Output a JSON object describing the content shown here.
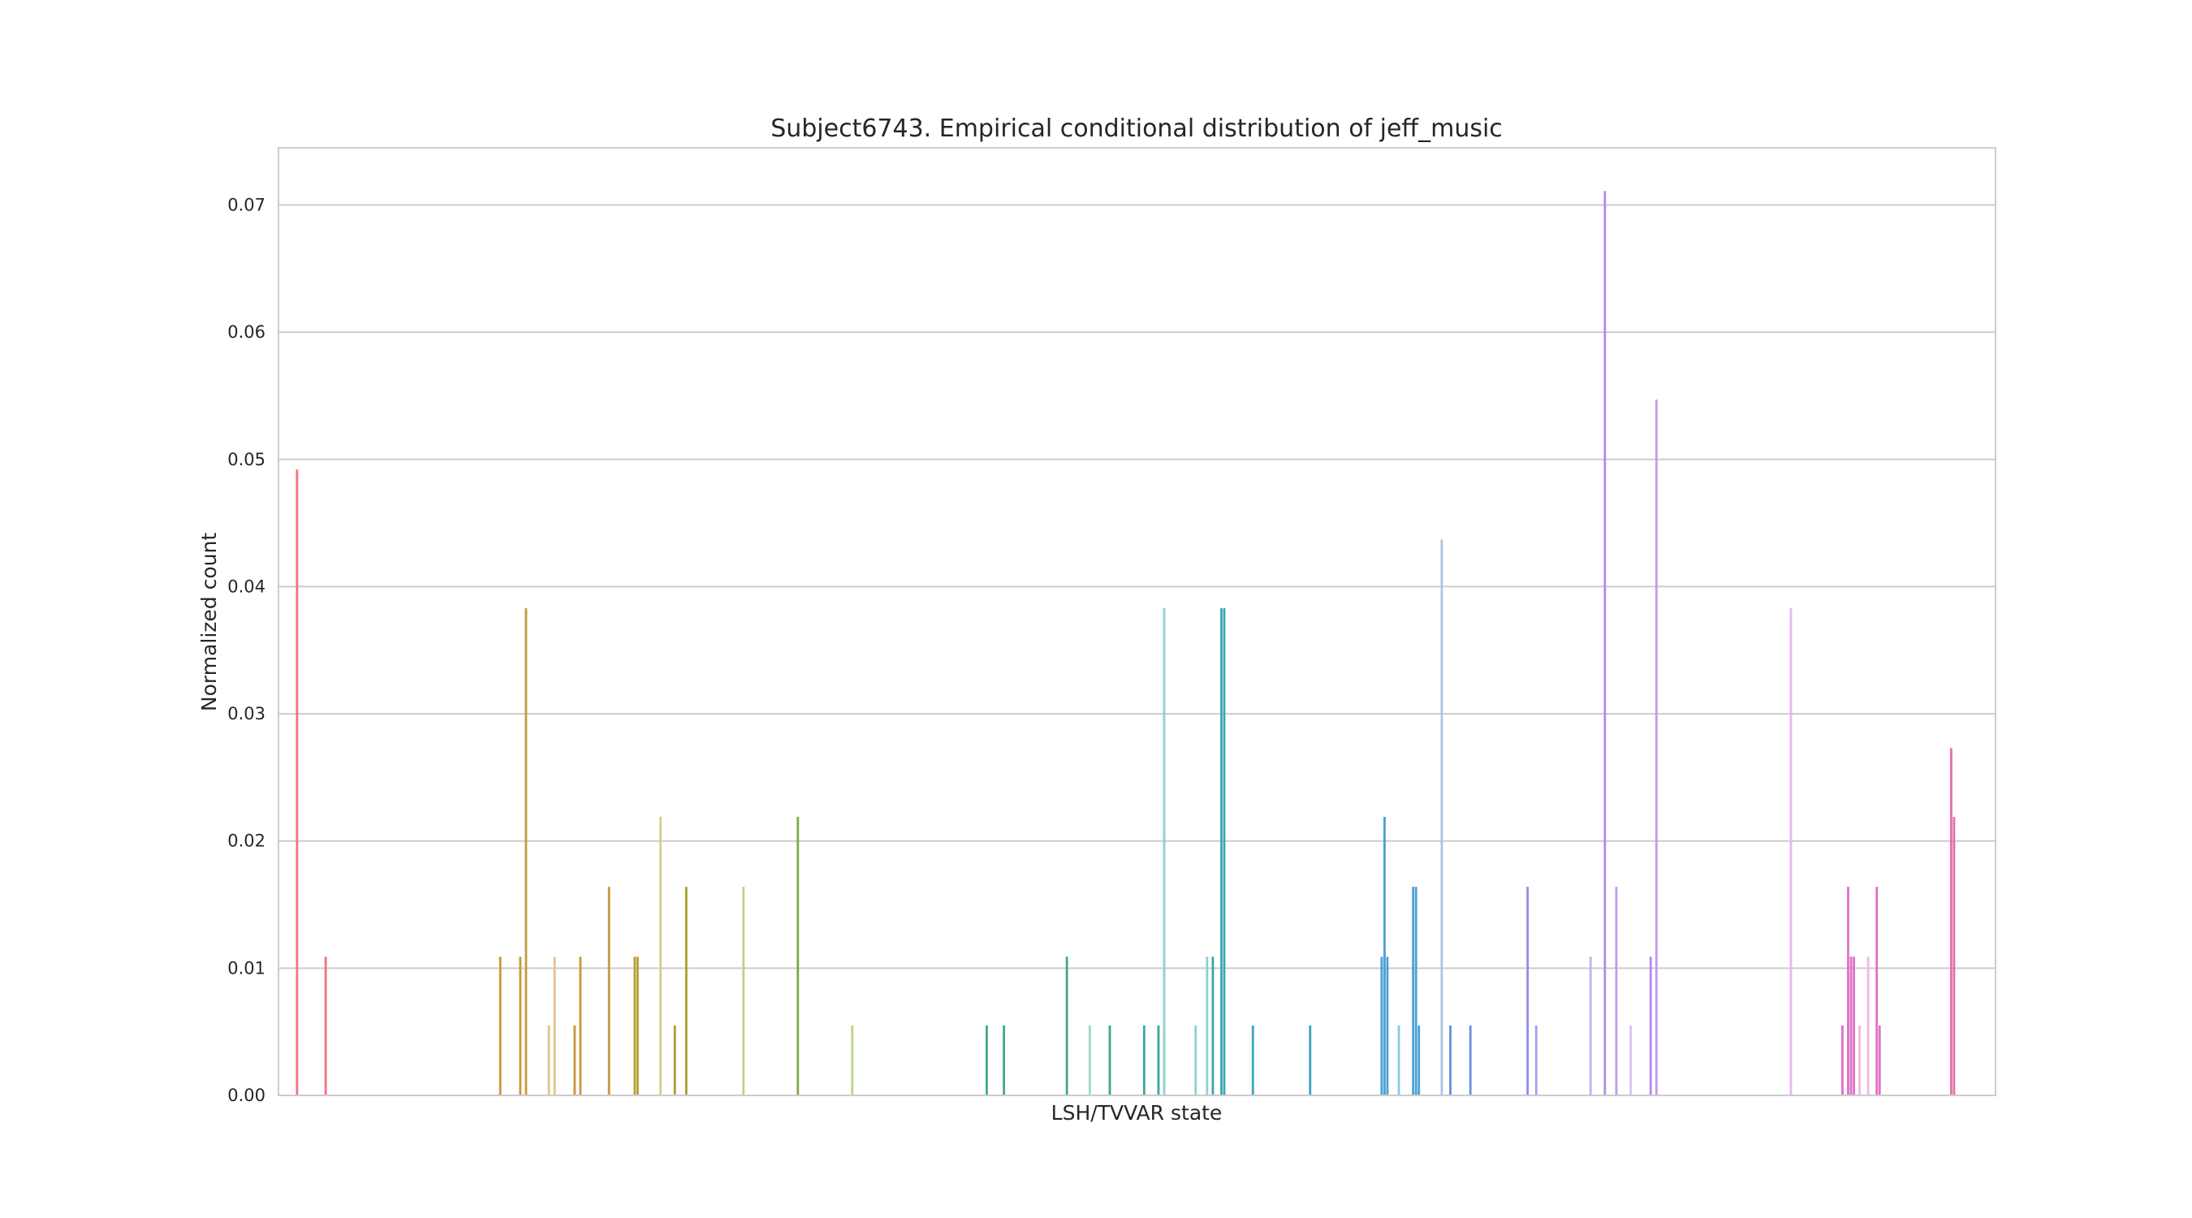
{
  "chart_data": {
    "type": "bar",
    "title": "Subject6743. Empirical conditional distribution of jeff_music",
    "xlabel": "LSH/TVVAR state",
    "ylabel": "Normalized count",
    "ylim": [
      0,
      0.0745
    ],
    "yticks": [
      "0.00",
      "0.01",
      "0.02",
      "0.03",
      "0.04",
      "0.05",
      "0.06",
      "0.07"
    ],
    "ytick_values": [
      0,
      0.01,
      0.02,
      0.03,
      0.04,
      0.05,
      0.06,
      0.07
    ],
    "grid": true,
    "xtick_labels_visible": false,
    "n_states": 600,
    "bars": [
      {
        "state": 6,
        "value": 0.0492,
        "color": "#f0737a"
      },
      {
        "state": 16,
        "value": 0.0109,
        "color": "#f0737a"
      },
      {
        "state": 77,
        "value": 0.0109,
        "color": "#c69a3b"
      },
      {
        "state": 84,
        "value": 0.0109,
        "color": "#c69a3b"
      },
      {
        "state": 86,
        "value": 0.0383,
        "color": "#c69a3b"
      },
      {
        "state": 94,
        "value": 0.0055,
        "color": "#e0c48c"
      },
      {
        "state": 96,
        "value": 0.0109,
        "color": "#e0c48c"
      },
      {
        "state": 103,
        "value": 0.0055,
        "color": "#c69a3b"
      },
      {
        "state": 105,
        "value": 0.0109,
        "color": "#c69a3b"
      },
      {
        "state": 115,
        "value": 0.0164,
        "color": "#c69a3b"
      },
      {
        "state": 124,
        "value": 0.0109,
        "color": "#b59f33"
      },
      {
        "state": 125,
        "value": 0.0109,
        "color": "#b59f33"
      },
      {
        "state": 133,
        "value": 0.0219,
        "color": "#d4cf8f"
      },
      {
        "state": 138,
        "value": 0.0055,
        "color": "#a8a031"
      },
      {
        "state": 142,
        "value": 0.0164,
        "color": "#a8a031"
      },
      {
        "state": 162,
        "value": 0.0164,
        "color": "#c9cc8f"
      },
      {
        "state": 181,
        "value": 0.0219,
        "color": "#7fa84a"
      },
      {
        "state": 200,
        "value": 0.0055,
        "color": "#b8d48c"
      },
      {
        "state": 247,
        "value": 0.0055,
        "color": "#3fae84"
      },
      {
        "state": 253,
        "value": 0.0055,
        "color": "#3fae84"
      },
      {
        "state": 275,
        "value": 0.0109,
        "color": "#3aa88f"
      },
      {
        "state": 283,
        "value": 0.0055,
        "color": "#9ed8c8"
      },
      {
        "state": 290,
        "value": 0.0055,
        "color": "#3aa88f"
      },
      {
        "state": 302,
        "value": 0.0055,
        "color": "#3aa89a"
      },
      {
        "state": 307,
        "value": 0.0055,
        "color": "#3aa89a"
      },
      {
        "state": 309,
        "value": 0.0383,
        "color": "#8fd0cf"
      },
      {
        "state": 320,
        "value": 0.0055,
        "color": "#8fd0cf"
      },
      {
        "state": 324,
        "value": 0.0109,
        "color": "#8fd0cf"
      },
      {
        "state": 326,
        "value": 0.0109,
        "color": "#3aa8b0"
      },
      {
        "state": 329,
        "value": 0.0383,
        "color": "#3aa8b8"
      },
      {
        "state": 330,
        "value": 0.0383,
        "color": "#3aa8b8"
      },
      {
        "state": 340,
        "value": 0.0055,
        "color": "#3aa8b8"
      },
      {
        "state": 360,
        "value": 0.0055,
        "color": "#3ba3c0"
      },
      {
        "state": 385,
        "value": 0.0109,
        "color": "#4ba0d6"
      },
      {
        "state": 386,
        "value": 0.0219,
        "color": "#4ba0d6"
      },
      {
        "state": 387,
        "value": 0.0109,
        "color": "#4ba0d6"
      },
      {
        "state": 391,
        "value": 0.0055,
        "color": "#8fc6e6"
      },
      {
        "state": 396,
        "value": 0.0164,
        "color": "#4ba0d6"
      },
      {
        "state": 397,
        "value": 0.0164,
        "color": "#4ba0d6"
      },
      {
        "state": 398,
        "value": 0.0055,
        "color": "#4ba0d6"
      },
      {
        "state": 406,
        "value": 0.0437,
        "color": "#a9c4e6"
      },
      {
        "state": 409,
        "value": 0.0055,
        "color": "#6b8fdc"
      },
      {
        "state": 416,
        "value": 0.0055,
        "color": "#6b8fdc"
      },
      {
        "state": 436,
        "value": 0.0164,
        "color": "#8e8ee6"
      },
      {
        "state": 439,
        "value": 0.0055,
        "color": "#a3a3ea"
      },
      {
        "state": 458,
        "value": 0.0109,
        "color": "#c0b4ef"
      },
      {
        "state": 463,
        "value": 0.0711,
        "color": "#b48ae6"
      },
      {
        "state": 467,
        "value": 0.0164,
        "color": "#c09ce8"
      },
      {
        "state": 472,
        "value": 0.0055,
        "color": "#d8c4f2"
      },
      {
        "state": 479,
        "value": 0.0109,
        "color": "#b48ae6"
      },
      {
        "state": 481,
        "value": 0.0547,
        "color": "#c09ce8"
      },
      {
        "state": 528,
        "value": 0.0383,
        "color": "#e6b8ef"
      },
      {
        "state": 546,
        "value": 0.0055,
        "color": "#e070c8"
      },
      {
        "state": 548,
        "value": 0.0164,
        "color": "#e070c8"
      },
      {
        "state": 549,
        "value": 0.0109,
        "color": "#e070c8"
      },
      {
        "state": 550,
        "value": 0.0109,
        "color": "#e070c8"
      },
      {
        "state": 552,
        "value": 0.0055,
        "color": "#f0b8e0"
      },
      {
        "state": 555,
        "value": 0.0109,
        "color": "#f0b8e0"
      },
      {
        "state": 558,
        "value": 0.0164,
        "color": "#e070c0"
      },
      {
        "state": 559,
        "value": 0.0055,
        "color": "#e070c0"
      },
      {
        "state": 584,
        "value": 0.0273,
        "color": "#e070a8"
      },
      {
        "state": 585,
        "value": 0.0219,
        "color": "#e070a8"
      }
    ]
  }
}
